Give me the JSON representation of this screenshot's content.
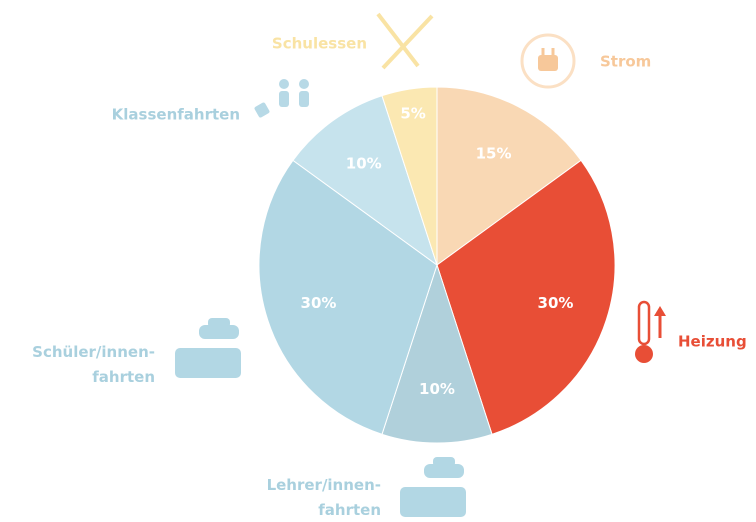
{
  "chart_data": {
    "type": "pie",
    "categories": [
      "Strom",
      "Heizung",
      "Lehrer/innen-\nfahrten",
      "Schüler/innen-\nfahrten",
      "Klassenfahrten",
      "Schulessen"
    ],
    "values": [
      15,
      30,
      10,
      30,
      10,
      5
    ],
    "value_labels": [
      "15%",
      "30%",
      "10%",
      "30%",
      "10%",
      "5%"
    ],
    "colors": [
      "#f9d8b4",
      "#e84e36",
      "#b0d0db",
      "#b2d7e4",
      "#c6e3ed",
      "#fbe8b2"
    ],
    "label_colors": [
      "#f7c89a",
      "#e84e36",
      "#a9d0de",
      "#a9d0de",
      "#a9d0de",
      "#f9e3a4"
    ]
  }
}
